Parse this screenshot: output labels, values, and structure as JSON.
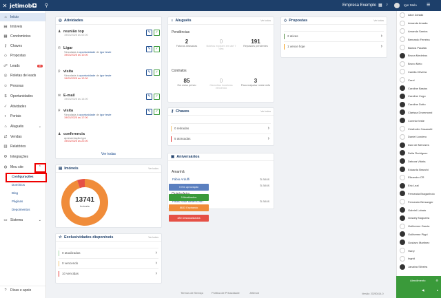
{
  "topbar": {
    "logo": "jetimob",
    "company": "Empresa Exemplo",
    "user": "Igor Melo"
  },
  "sidebar": {
    "items": [
      {
        "label": "Início",
        "icon": "home-icon",
        "glyph": "⌂"
      },
      {
        "label": "Imóveis",
        "icon": "building-icon",
        "glyph": "▤"
      },
      {
        "label": "Condomínios",
        "icon": "condo-icon",
        "glyph": "▦"
      },
      {
        "label": "Chaves",
        "icon": "key-icon",
        "glyph": "⚷"
      },
      {
        "label": "Propostas",
        "icon": "proposal-icon",
        "glyph": "◇"
      },
      {
        "label": "Leads",
        "icon": "leads-icon",
        "glyph": "☍",
        "badge": "99"
      },
      {
        "label": "Roletas de leads",
        "icon": "roulette-icon",
        "glyph": "◎"
      },
      {
        "label": "Pessoas",
        "icon": "people-icon",
        "glyph": "☺"
      },
      {
        "label": "Oportunidades",
        "icon": "opportunity-icon",
        "glyph": "$"
      },
      {
        "label": "Atividades",
        "icon": "activity-icon",
        "glyph": "✓"
      },
      {
        "label": "Portais",
        "icon": "portal-icon",
        "glyph": "◐"
      },
      {
        "label": "Aluguéis",
        "icon": "rent-icon",
        "glyph": "⌂"
      },
      {
        "label": "Vendas",
        "icon": "sales-icon",
        "glyph": "⇄"
      },
      {
        "label": "Relatórios",
        "icon": "report-icon",
        "glyph": "▥"
      },
      {
        "label": "Integrações",
        "icon": "integration-icon",
        "glyph": "⚙"
      },
      {
        "label": "Meu site",
        "icon": "globe-icon",
        "glyph": "◍"
      }
    ],
    "submenu": [
      "Configurações",
      "Domínios",
      "Blog",
      "Páginas",
      "Depoimentos"
    ],
    "sistema": "Sistema",
    "help": "Dicas e apoio"
  },
  "atividades": {
    "title": "Atividades",
    "ver_todas": "Ver todas",
    "items": [
      {
        "title": "reunião top",
        "icon": "meeting-icon",
        "glyph": "♟",
        "date": "19/03/2025 às 02:00"
      },
      {
        "title": "Ligar",
        "icon": "phone-icon",
        "glyph": "✆",
        "date": "",
        "v1": "Vinculada à",
        "link1": "oportunidade",
        "v2": "de",
        "link2": "igor teste",
        "date2": "19/03/2025 às 10:00"
      },
      {
        "title": "visita",
        "icon": "visit-icon",
        "glyph": "⚲",
        "date": "",
        "v1": "Vinculada à",
        "link1": "oportunidade",
        "v2": "de",
        "link2": "igor teste",
        "date2": "19/03/2025 às 12:00"
      },
      {
        "title": "E-mail",
        "icon": "email-icon",
        "glyph": "✉",
        "date": "19/03/2025 às 14:00"
      },
      {
        "title": "visita",
        "icon": "visit-icon",
        "glyph": "⚲",
        "v1": "Vinculada à",
        "link1": "oportunidade",
        "v2": "de",
        "link2": "igor teste",
        "date2": "19/03/2025 às 17:00"
      },
      {
        "title": "conferencia",
        "icon": "meeting-icon",
        "glyph": "♟",
        "v1": "apresentação igor",
        "date2": "19/03/2025 às 22:00"
      }
    ]
  },
  "alugueis": {
    "title": "Aluguéis",
    "ver": "Ver todos",
    "pend": "Pendências",
    "contratos": "Contratos",
    "p": [
      {
        "n": "2",
        "l": "Faturas atrasadas"
      },
      {
        "n": "0",
        "l": "Boletos expiram em até 7 dias"
      },
      {
        "n": "191",
        "l": "Repasses pendentes"
      }
    ],
    "c": [
      {
        "n": "85",
        "l": "Em aviso prévio"
      },
      {
        "n": "0",
        "l": "Garantias locatícias vencendo"
      },
      {
        "n": "3",
        "l": "Para reajustar neste mês"
      }
    ]
  },
  "propostas": {
    "title": "Propostas",
    "ver": "Ver todas",
    "rows": [
      {
        "label": "2 ativas",
        "color": "#5a8f4a"
      },
      {
        "label": "1 vence hoje",
        "color": "#f0a020"
      }
    ]
  },
  "chaves": {
    "title": "Chaves",
    "ver": "Ver todos",
    "rows": [
      {
        "label": "0 retiradas",
        "color": "#f3c77a"
      },
      {
        "label": "5 atrasadas",
        "color": "#e53935"
      }
    ]
  },
  "aniversarios": {
    "title": "Aniversários",
    "amanha": "Amanhã",
    "quinta": "Quinta-feira",
    "a": [
      {
        "name": "Fábio Arduffi",
        "years": "5 anos"
      },
      {
        "name": "Robson Silva",
        "years": "5 anos"
      }
    ],
    "q": [
      {
        "name": "Paulo Vitor Betencourt",
        "years": "5 anos"
      }
    ]
  },
  "imoveis": {
    "title": "Imóveis",
    "ver": "Ver todos",
    "total": "13741",
    "total_label": "Imóveis",
    "legend": [
      {
        "label": "0 Em aprovação",
        "color": "#5a7fbf",
        "value": 0
      },
      {
        "label": "0 Atualizados",
        "color": "#3a9a3a",
        "value": 0
      },
      {
        "label": "8633 Expirando",
        "color": "#f08c3a",
        "value": 8633
      },
      {
        "label": "480 Desatualizados",
        "color": "#e55045",
        "value": 480
      }
    ]
  },
  "exclusividades": {
    "title": "Exclusividades disponíveis",
    "ver": "Ver todos",
    "rows": [
      {
        "label": "0 atualizadas",
        "color": "#a5d6a7"
      },
      {
        "label": "0 vencendo",
        "color": "#f3c77a"
      },
      {
        "label": "10 vencidas",
        "color": "#e53935"
      }
    ]
  },
  "contacts": [
    "Alice Zdradk",
    "Amanda Amada",
    "Amanda Santos",
    "Bernardo Ferreira",
    "Bianca Paulata",
    "Bruna Medeiros",
    "Bruno Melo",
    "Camila Oliveira",
    "Carol",
    "Caroline Bastos",
    "Caroline Cogo",
    "Caroline Dotto",
    "Clarissa Drummond",
    "Conetur teste",
    "Cristhofer Casanotti",
    "Daniel Londero",
    "Davi de Menezes",
    "Delia Rodriguez",
    "Debora Vitória",
    "Eduarda Branchi",
    "Elizandro CR",
    "Eric Leal",
    "Fernanda Braganholo",
    "Fernando Bersanger",
    "Gabriel Lobato",
    "Gracely Nogueira",
    "Guilherme Garcia",
    "Guilherme Pippi",
    "Gustavo Martinez",
    "Harry",
    "Ingrid",
    "Janaina Silveira"
  ],
  "atendimento": "Atendimento",
  "footer": {
    "termos": "Termos de Serviço",
    "privacidade": "Política de Privacidade",
    "jetimob": "Jetimob",
    "versao": "Versão: 20250414-0"
  }
}
